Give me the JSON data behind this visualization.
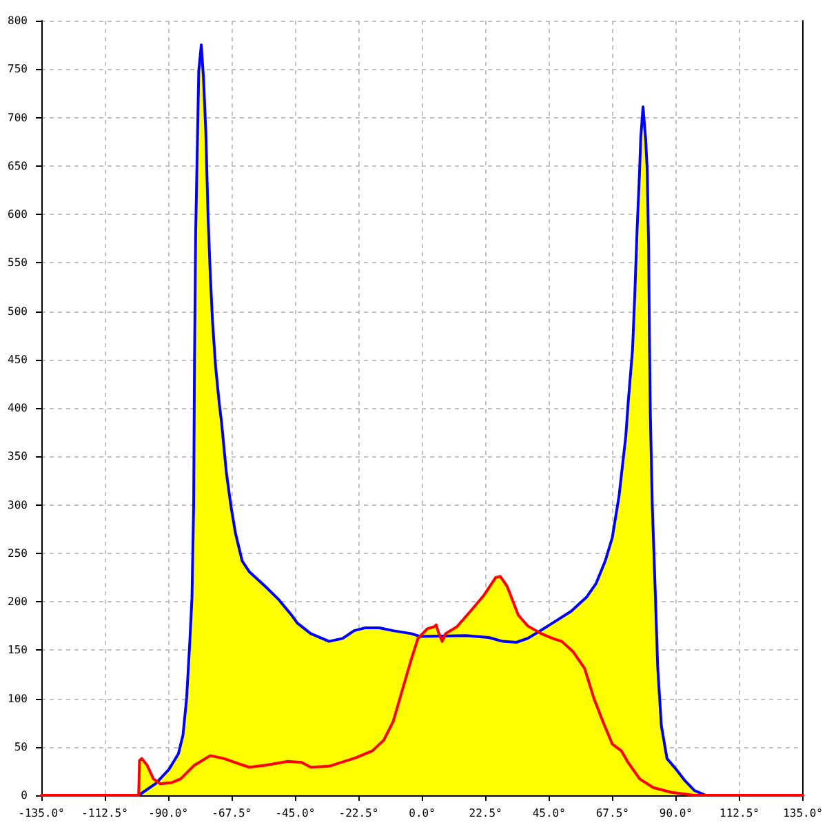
{
  "chart_data": {
    "type": "line",
    "xlim": [
      -135,
      135
    ],
    "ylim": [
      0,
      800
    ],
    "grid": true,
    "xticks": [
      {
        "value": -135,
        "label": "-135.0°"
      },
      {
        "value": -112.5,
        "label": "-112.5°"
      },
      {
        "value": -90,
        "label": "-90.0°"
      },
      {
        "value": -67.5,
        "label": "-67.5°"
      },
      {
        "value": -45,
        "label": "-45.0°"
      },
      {
        "value": -22.5,
        "label": "-22.5°"
      },
      {
        "value": 0,
        "label": "0.0°"
      },
      {
        "value": 22.5,
        "label": "22.5°"
      },
      {
        "value": 45,
        "label": "45.0°"
      },
      {
        "value": 67.5,
        "label": "67.5°"
      },
      {
        "value": 90,
        "label": "90.0°"
      },
      {
        "value": 112.5,
        "label": "112.5°"
      },
      {
        "value": 135,
        "label": "135.0°"
      }
    ],
    "yticks": [
      0,
      50,
      100,
      150,
      200,
      250,
      300,
      350,
      400,
      450,
      500,
      550,
      600,
      650,
      700,
      750,
      800
    ],
    "series": [
      {
        "type": "area",
        "color": "#ffff00",
        "x": [
          -135,
          -100.5,
          -100.2,
          -99.4,
          -97.5,
          -95.3,
          -93.8,
          -89.7,
          -86.4,
          -84.8,
          -83.5,
          -82.4,
          -81.6,
          -81,
          -80.7,
          -80.3,
          -79.6,
          -79.2,
          -78.3,
          -77.5,
          -76.7,
          -75.9,
          -75.1,
          -74.3,
          -73.2,
          -71.9,
          -71.1,
          -69.4,
          -67.8,
          -66.2,
          -63.8,
          -61.3,
          -55.7,
          -50.8,
          -46,
          -44.3,
          -39.5,
          -33,
          -28.2,
          -24.1,
          -20.1,
          -15.2,
          -10.3,
          -3.9,
          -0.8,
          1.8,
          4.2,
          5,
          5.8,
          6.3,
          7.8,
          8.3,
          12.3,
          17.1,
          22,
          26.1,
          27.7,
          30.1,
          34.1,
          37.4,
          40.5,
          41.4,
          46.3,
          52.8,
          58.4,
          61.7,
          64.9,
          67.4,
          69.8,
          72.2,
          73,
          74.6,
          75.4,
          76.2,
          77.1,
          77.5,
          78.3,
          79.2,
          79.8,
          80.3,
          80.6,
          80.9,
          81.6,
          82.7,
          83.5,
          84.8,
          86.8,
          90,
          93.2,
          96.5,
          99.7,
          100.5,
          135
        ],
        "values": [
          0,
          0,
          36,
          38,
          31,
          17,
          14,
          27,
          43,
          62,
          100,
          157,
          204,
          300,
          447,
          579,
          686,
          748,
          775,
          740,
          686,
          598,
          537,
          489,
          442,
          404,
          385,
          333,
          299,
          271,
          242,
          231,
          216,
          202,
          185,
          178,
          167,
          159,
          162,
          170,
          173,
          173,
          170,
          167,
          164,
          172,
          174,
          176,
          168,
          164,
          164,
          167,
          174,
          190,
          207,
          225,
          226,
          216,
          186,
          175,
          167,
          169,
          178,
          190,
          205,
          219,
          242,
          266,
          309,
          371,
          404,
          461,
          518,
          584,
          646,
          679,
          711,
          679,
          646,
          565,
          466,
          394,
          299,
          205,
          133,
          72,
          38,
          27,
          15,
          5,
          1,
          0,
          0
        ]
      },
      {
        "color": "#0000ff",
        "x": [
          -100.5,
          -94.5,
          -89.7,
          -86.4,
          -84.8,
          -83.5,
          -82.4,
          -81.6,
          -81,
          -80.7,
          -80.3,
          -79.6,
          -79.2,
          -78.3,
          -77.5,
          -76.7,
          -75.9,
          -75.1,
          -74.3,
          -73.2,
          -71.9,
          -71.1,
          -69.4,
          -67.8,
          -66.2,
          -63.8,
          -61.3,
          -55.7,
          -50.8,
          -46,
          -44.3,
          -39.5,
          -33,
          -28.2,
          -24.1,
          -20.1,
          -15.2,
          -10.3,
          -3.9,
          -0.6,
          15.5,
          23.6,
          28.5,
          33.4,
          37.4,
          41.4,
          46.3,
          52.8,
          58.4,
          61.7,
          64.9,
          67.4,
          69.8,
          72.2,
          73,
          74.6,
          75.4,
          76.2,
          77.1,
          77.5,
          78.3,
          79.2,
          79.8,
          80.3,
          80.6,
          80.9,
          81.6,
          82.7,
          83.5,
          84.8,
          86.8,
          90,
          93.2,
          96.5,
          99.7,
          100.5
        ],
        "values": [
          0,
          12,
          27,
          43,
          62,
          100,
          157,
          204,
          300,
          447,
          579,
          686,
          748,
          775,
          740,
          686,
          598,
          537,
          489,
          442,
          404,
          385,
          333,
          299,
          271,
          242,
          231,
          216,
          202,
          185,
          178,
          167,
          159,
          162,
          170,
          173,
          173,
          170,
          167,
          164,
          165,
          163,
          159,
          158,
          162,
          169,
          178,
          190,
          205,
          219,
          242,
          266,
          309,
          371,
          404,
          461,
          518,
          584,
          646,
          679,
          711,
          679,
          646,
          565,
          466,
          394,
          299,
          205,
          133,
          72,
          38,
          27,
          15,
          5,
          1,
          0
        ]
      },
      {
        "color": "#ff0000",
        "x": [
          -135,
          -100.5,
          -100.2,
          -99.4,
          -97.5,
          -95.3,
          -92.9,
          -88.9,
          -85.6,
          -80.8,
          -75.1,
          -70.3,
          -65.4,
          -61.3,
          -55.7,
          -47.6,
          -42.7,
          -39.5,
          -33,
          -23.3,
          -17.6,
          -13.6,
          -10.3,
          -7.9,
          -5.5,
          -3.9,
          -1.5,
          1.8,
          4.2,
          5,
          5.8,
          7.1,
          8.3,
          12.3,
          17.1,
          22,
          26.1,
          27.7,
          30.1,
          34.1,
          37.4,
          42.2,
          46.3,
          49.5,
          53.6,
          57.6,
          60.9,
          64.1,
          67.4,
          70.6,
          73,
          77.1,
          81.9,
          88.4,
          96.5,
          135
        ],
        "values": [
          0,
          0,
          36,
          38,
          31,
          17,
          12,
          13,
          17,
          31,
          41,
          38,
          33,
          29,
          31,
          35,
          34,
          29,
          30,
          39,
          46,
          57,
          76,
          100,
          124,
          140,
          162,
          172,
          174,
          176,
          168,
          159,
          167,
          174,
          190,
          207,
          225,
          226,
          216,
          186,
          175,
          167,
          162,
          159,
          148,
          131,
          100,
          76,
          53,
          46,
          34,
          17,
          8,
          3,
          0,
          0
        ]
      }
    ]
  }
}
